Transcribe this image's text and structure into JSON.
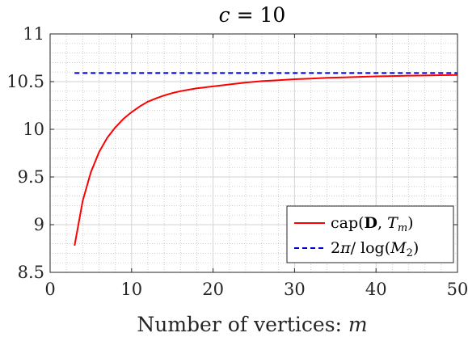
{
  "chart_data": {
    "type": "line",
    "title": "c = 10",
    "xlabel": "Number of vertices: m",
    "ylabel": "",
    "xlim": [
      0,
      50
    ],
    "ylim": [
      8.5,
      11
    ],
    "x_ticks": [
      0,
      10,
      20,
      30,
      40,
      50
    ],
    "x_tick_labels": [
      "0",
      "10",
      "20",
      "30",
      "40",
      "50"
    ],
    "y_ticks": [
      8.5,
      9,
      9.5,
      10,
      10.5,
      11
    ],
    "y_tick_labels": [
      "8.5",
      "9",
      "9.5",
      "10",
      "10.5",
      "11"
    ],
    "grid": true,
    "minor_grid": true,
    "legend_position": "bottom-right",
    "series": [
      {
        "name": "cap(D, T_m)",
        "color": "#ff0000",
        "dash": "solid",
        "x": [
          3,
          4,
          5,
          6,
          7,
          8,
          9,
          10,
          11,
          12,
          13,
          14,
          15,
          16,
          17,
          18,
          19,
          20,
          22,
          24,
          26,
          28,
          30,
          32,
          34,
          36,
          38,
          40,
          42,
          44,
          46,
          48,
          50
        ],
        "y": [
          8.78,
          9.25,
          9.55,
          9.76,
          9.91,
          10.02,
          10.11,
          10.18,
          10.24,
          10.29,
          10.325,
          10.355,
          10.38,
          10.4,
          10.415,
          10.43,
          10.44,
          10.45,
          10.47,
          10.49,
          10.505,
          10.515,
          10.525,
          10.532,
          10.54,
          10.545,
          10.55,
          10.555,
          10.558,
          10.562,
          10.565,
          10.568,
          10.57
        ]
      },
      {
        "name": "2π/log(M₂)",
        "color": "#0000cc",
        "dash": "dashed",
        "x": [
          3,
          50
        ],
        "y": [
          10.59,
          10.59
        ]
      }
    ]
  },
  "title_parts": {
    "var": "c",
    "eq": " = 10"
  },
  "xlabel_parts": {
    "text": "Number of vertices: ",
    "var": "m"
  },
  "legend": {
    "entry1": {
      "pre": "cap(",
      "bold": "D",
      "mid": ", ",
      "var": "T",
      "sub": "m",
      "post": ")"
    },
    "entry2": {
      "pre": "2",
      "pi": "π",
      "mid": "/ log(",
      "var": "M",
      "sub": "2",
      "post": ")"
    }
  }
}
